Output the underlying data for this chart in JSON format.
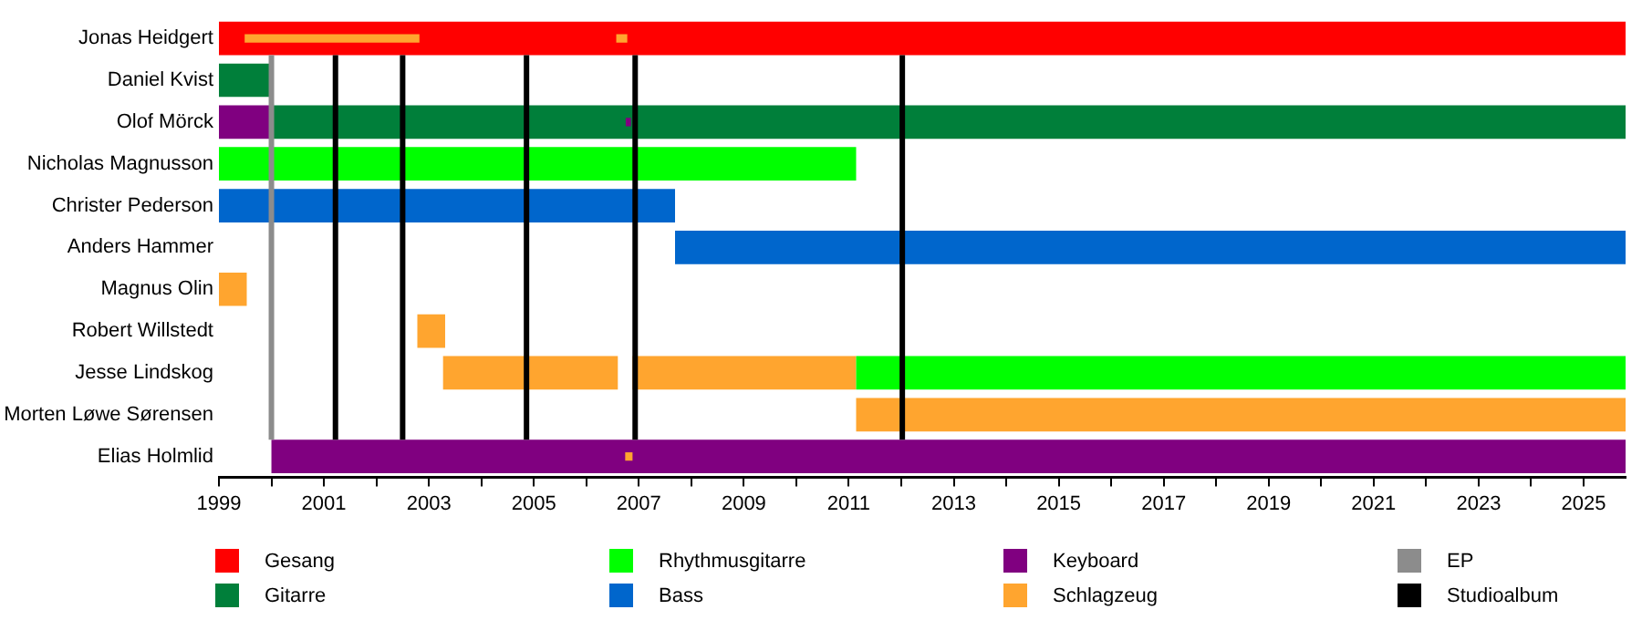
{
  "chart_data": {
    "type": "bar",
    "orientation": "horizontal",
    "categories": [
      "Jonas Heidgert",
      "Daniel Kvist",
      "Olof Mörck",
      "Nicholas Magnusson",
      "Christer Pederson",
      "Anders Hammer",
      "Magnus Olin",
      "Robert Willstedt",
      "Jesse Lindskog",
      "Morten Løwe Sørensen",
      "Elias Holmlid"
    ],
    "series": [
      {
        "name": "Gesang",
        "color": "#ff0000",
        "base": [
          1999,
          null,
          null,
          null,
          null,
          null,
          null,
          null,
          null,
          null,
          null
        ],
        "values": [
          26.8,
          null,
          null,
          null,
          null,
          null,
          null,
          null,
          null,
          null,
          null
        ]
      },
      {
        "name": "Gitarre",
        "color": "#007f3a",
        "base": [
          null,
          1999,
          2000,
          null,
          null,
          null,
          null,
          null,
          null,
          null,
          null
        ],
        "values": [
          null,
          1.0,
          25.8,
          null,
          null,
          null,
          null,
          null,
          null,
          null,
          null
        ]
      },
      {
        "name": "Rhythmusgitarre",
        "color": "#00ff00",
        "base": [
          null,
          null,
          null,
          1999,
          null,
          null,
          null,
          null,
          2011.14,
          null,
          null
        ],
        "values": [
          null,
          null,
          null,
          12.14,
          null,
          null,
          null,
          null,
          14.66,
          null,
          null
        ]
      },
      {
        "name": "Bass",
        "color": "#0066cc",
        "base": [
          null,
          null,
          null,
          null,
          1999,
          2007.69,
          null,
          null,
          null,
          null,
          null
        ],
        "values": [
          null,
          null,
          null,
          null,
          8.69,
          18.11,
          null,
          null,
          null,
          null,
          null
        ]
      },
      {
        "name": "Keyboard",
        "color": "#800080",
        "base": [
          null,
          null,
          1999,
          null,
          null,
          null,
          null,
          null,
          null,
          null,
          2000
        ],
        "values": [
          null,
          null,
          1.0,
          null,
          null,
          null,
          null,
          null,
          null,
          null,
          25.8
        ]
      },
      {
        "name": "Schlagzeug",
        "color": "#ffa52f",
        "base": [
          1999.49,
          null,
          null,
          null,
          null,
          null,
          1999,
          2002.78,
          2003.27,
          2011.14,
          null
        ],
        "values": [
          3.33,
          null,
          null,
          null,
          null,
          null,
          0.53,
          0.53,
          3.33,
          14.66,
          null
        ]
      },
      {
        "color": "#ffa52f",
        "base": [
          2006.57,
          null,
          null,
          null,
          null,
          null,
          null,
          null,
          2006.88,
          null,
          2006.74
        ],
        "values": [
          0.21,
          null,
          null,
          null,
          null,
          null,
          null,
          null,
          4.26,
          null,
          0.14
        ]
      },
      {
        "color": "#800080",
        "base": [
          null,
          null,
          2006.75,
          null,
          null,
          null,
          null,
          null,
          null,
          null,
          null
        ],
        "values": [
          null,
          null,
          0.1,
          null,
          null,
          null,
          null,
          null,
          null,
          null,
          null
        ]
      }
    ],
    "xlim": [
      1999,
      2025.8
    ],
    "xticks": [
      1999,
      {
        "value": 2000,
        "label": null
      },
      2001,
      {
        "value": 2002,
        "label": null
      },
      2003,
      {
        "value": 2004,
        "label": null
      },
      2005,
      {
        "value": 2006,
        "label": null
      },
      2007,
      {
        "value": 2008,
        "label": null
      },
      2009,
      {
        "value": 2010,
        "label": null
      },
      2011,
      {
        "value": 2012,
        "label": null
      },
      2013,
      {
        "value": 2014,
        "label": null
      },
      2015,
      {
        "value": 2016,
        "label": null
      },
      2017,
      {
        "value": 2018,
        "label": null
      },
      2019,
      {
        "value": 2020,
        "label": null
      },
      2021,
      {
        "value": 2022,
        "label": null
      },
      2023,
      {
        "value": 2024,
        "label": null
      },
      2025
    ],
    "ref_lines": [
      {
        "axis": "x",
        "value": 2000.0,
        "label": "EP",
        "color": "#8c8c8c"
      },
      {
        "axis": "x",
        "value": 2001.22,
        "label": "Studioalbum",
        "color": "#000000"
      },
      {
        "axis": "x",
        "value": 2002.5,
        "color": "#000000"
      },
      {
        "axis": "x",
        "value": 2004.86,
        "color": "#000000"
      },
      {
        "axis": "x",
        "value": 2006.93,
        "color": "#000000"
      },
      {
        "axis": "x",
        "value": 2012.02,
        "color": "#000000"
      }
    ],
    "legend": "bottom",
    "grid": false
  }
}
